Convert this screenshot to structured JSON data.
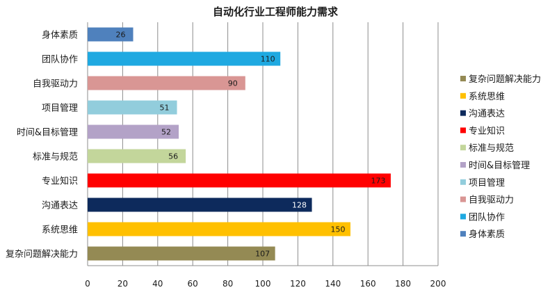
{
  "chart_data": {
    "type": "bar",
    "orientation": "horizontal",
    "title": "自动化行业工程师能力需求",
    "categories": [
      "身体素质",
      "团队协作",
      "自我驱动力",
      "项目管理",
      "时间&目标管理",
      "标准与规范",
      "专业知识",
      "沟通表达",
      "系统思维",
      "复杂问题解决能力"
    ],
    "values": [
      26,
      110,
      90,
      51,
      52,
      56,
      173,
      128,
      150,
      107
    ],
    "colors": [
      "#4f81bd",
      "#1fa9e1",
      "#d99694",
      "#92cddc",
      "#b3a2c7",
      "#c3d69b",
      "#ff0000",
      "#0d2a5c",
      "#ffc000",
      "#948a54"
    ],
    "label_colors": [
      "#1a1a1a",
      "#1a1a1a",
      "#1a1a1a",
      "#1a1a1a",
      "#1a1a1a",
      "#1a1a1a",
      "#1a1a1a",
      "#ffffff",
      "#1a1a1a",
      "#1a1a1a"
    ],
    "xlim": [
      0,
      200
    ],
    "xticks": [
      "0",
      "20",
      "40",
      "60",
      "80",
      "100",
      "120",
      "140",
      "160",
      "180",
      "200"
    ],
    "grid": true,
    "legend_position": "right",
    "legend": [
      "复杂问题解决能力",
      "系统思维",
      "沟通表达",
      "专业知识",
      "标准与规范",
      "时间&目标管理",
      "项目管理",
      "自我驱动力",
      "团队协作",
      "身体素质"
    ],
    "legend_colors": [
      "#948a54",
      "#ffc000",
      "#0d2a5c",
      "#ff0000",
      "#c3d69b",
      "#b3a2c7",
      "#92cddc",
      "#d99694",
      "#1fa9e1",
      "#4f81bd"
    ]
  }
}
